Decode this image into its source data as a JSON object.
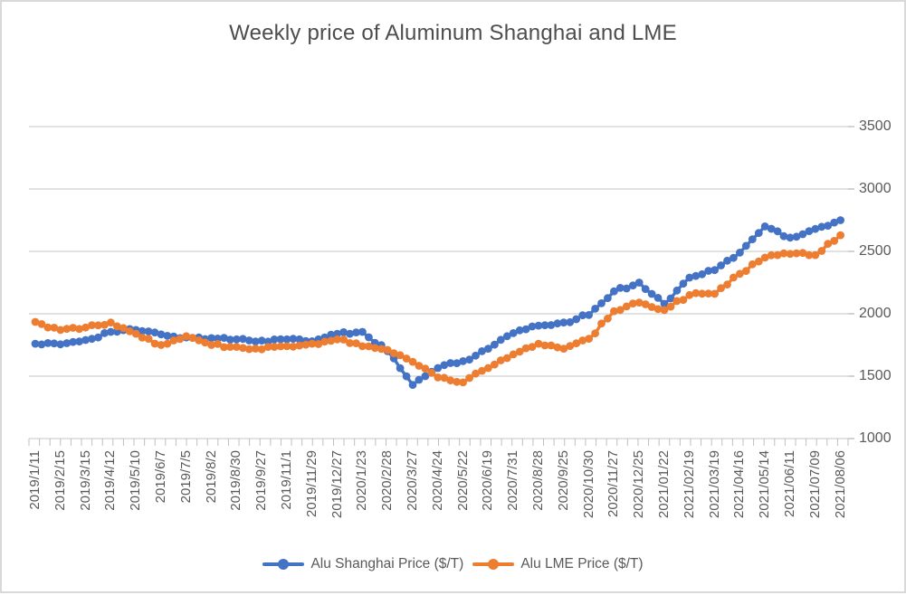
{
  "colors": {
    "shanghai": "#4472C4",
    "lme": "#ED7D31",
    "gridline": "#D9D9D9",
    "tick": "#BFBFBF",
    "axis_text": "#595959",
    "title_text": "#4d4d4d",
    "frame_border": "#D9D9D9",
    "background": "#FFFFFF"
  },
  "chart_data": {
    "type": "line",
    "title": "Weekly price of Aluminum Shanghai and LME",
    "xlabel": "",
    "ylabel": "",
    "ylim": [
      1000,
      3500
    ],
    "yticks": [
      1000,
      1500,
      2000,
      2500,
      3000,
      3500
    ],
    "grid": true,
    "legend_position": "bottom",
    "x_label_rotation": 90,
    "marker": "circle",
    "frequency_note": "weekly series; axis labels shown roughly every 4 weeks",
    "categories": [
      "2019/1/11",
      "2019/2/15",
      "2019/3/15",
      "2019/4/12",
      "2019/5/10",
      "2019/6/7",
      "2019/7/5",
      "2019/8/2",
      "2019/8/30",
      "2019/9/27",
      "2019/11/1",
      "2019/11/29",
      "2019/12/27",
      "2020/1/23",
      "2020/2/28",
      "2020/3/27",
      "2020/4/24",
      "2020/5/22",
      "2020/6/19",
      "2020/7/31",
      "2020/8/28",
      "2020/9/25",
      "2020/10/30",
      "2020/11/27",
      "2020/12/25",
      "2021/01/22",
      "2021/02/19",
      "2021/03/19",
      "2021/04/16",
      "2021/05/14",
      "2021/06/11",
      "2021/07/09",
      "2021/08/06"
    ],
    "series": [
      {
        "name": "Alu Shanghai Price ($/T)",
        "color": "#4472C4",
        "values": [
          1760,
          1755,
          1790,
          1855,
          1870,
          1835,
          1810,
          1805,
          1795,
          1785,
          1795,
          1780,
          1840,
          1855,
          1700,
          1430,
          1565,
          1620,
          1720,
          1845,
          1905,
          1930,
          1990,
          2180,
          2250,
          2080,
          2290,
          2350,
          2490,
          2700,
          2610,
          2680,
          2750
        ]
      },
      {
        "name": "Alu LME Price ($/T)",
        "color": "#ED7D31",
        "values": [
          1935,
          1870,
          1890,
          1930,
          1840,
          1750,
          1820,
          1750,
          1735,
          1715,
          1740,
          1760,
          1795,
          1740,
          1710,
          1615,
          1490,
          1450,
          1565,
          1675,
          1760,
          1720,
          1800,
          2020,
          2090,
          2030,
          2150,
          2160,
          2320,
          2450,
          2480,
          2470,
          2630
        ]
      }
    ]
  }
}
